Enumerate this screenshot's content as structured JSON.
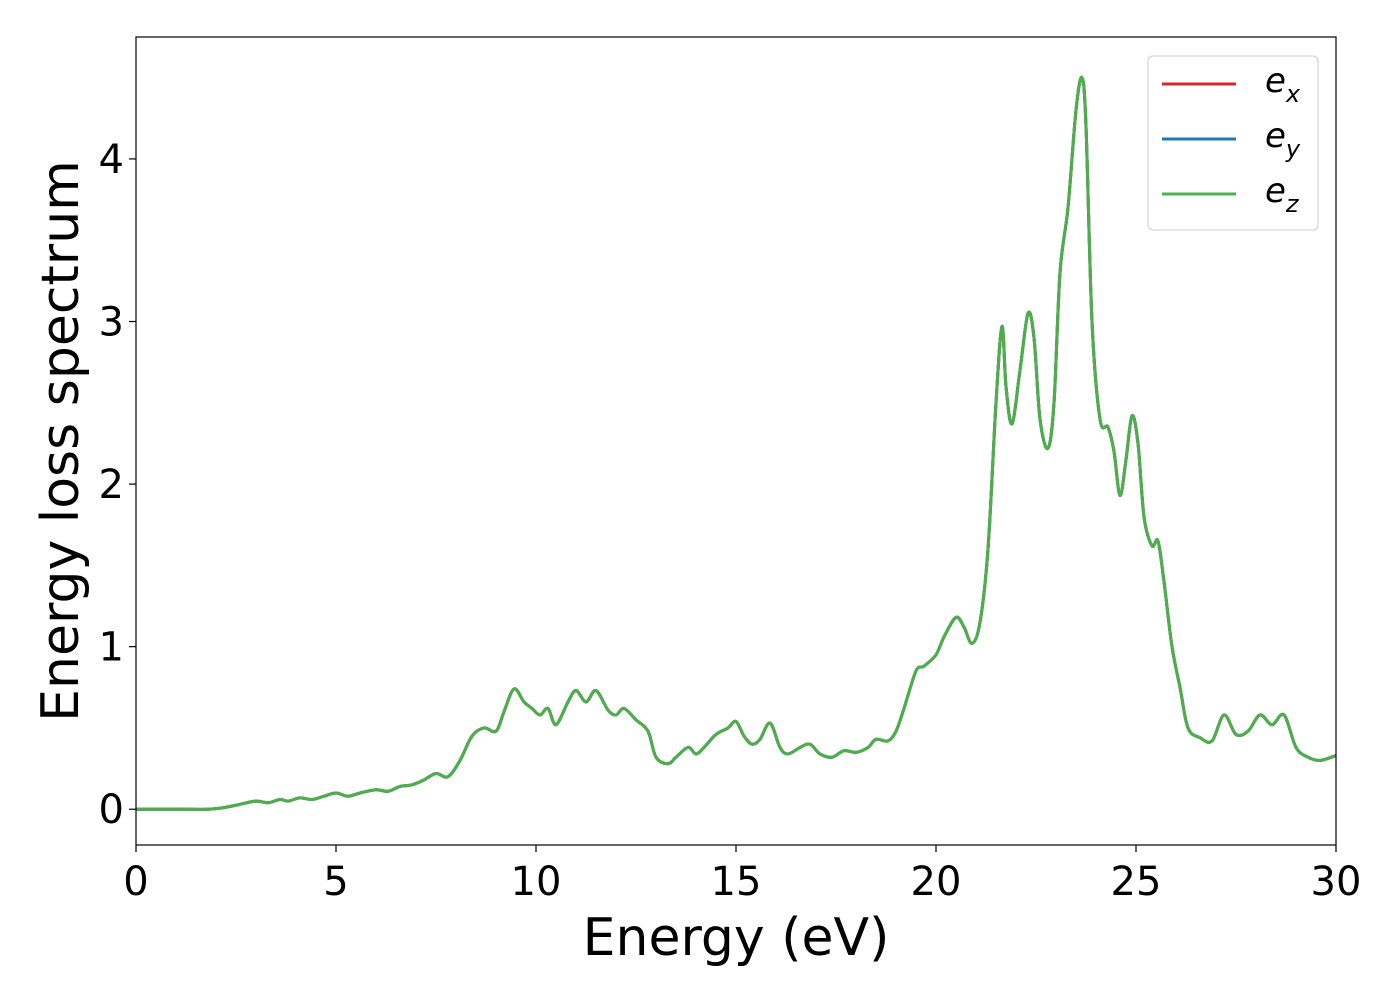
{
  "chart_data": {
    "type": "line",
    "xlabel": "Energy (eV)",
    "ylabel": "Energy loss spectrum",
    "xlim": [
      0,
      30
    ],
    "ylim": [
      -0.22,
      4.75
    ],
    "xticks": [
      0,
      5,
      10,
      15,
      20,
      25,
      30
    ],
    "yticks": [
      0,
      1,
      2,
      3,
      4
    ],
    "xtick_labels": [
      "0",
      "5",
      "10",
      "15",
      "20",
      "25",
      "30"
    ],
    "ytick_labels": [
      "0",
      "1",
      "2",
      "3",
      "4"
    ],
    "grid": false,
    "legend": {
      "placement": "top-right",
      "entries": [
        {
          "base": "e",
          "sub": "x",
          "color": "#d62728"
        },
        {
          "base": "e",
          "sub": "y",
          "color": "#1f77b4"
        },
        {
          "base": "e",
          "sub": "z",
          "color": "#4daf4a"
        }
      ]
    },
    "series": [
      {
        "color": "#d62728",
        "x": [
          0,
          1,
          1.8,
          2.2,
          2.6,
          3.0,
          3.3,
          3.6,
          3.8,
          4.1,
          4.4,
          4.7,
          5.0,
          5.3,
          5.6,
          6.0,
          6.3,
          6.6,
          6.9,
          7.2,
          7.5,
          7.8,
          8.1,
          8.4,
          8.7,
          9.0,
          9.2,
          9.45,
          9.7,
          9.9,
          10.1,
          10.3,
          10.5,
          10.8,
          11.0,
          11.25,
          11.5,
          11.8,
          12.0,
          12.2,
          12.5,
          12.8,
          13.0,
          13.3,
          13.5,
          13.8,
          14.0,
          14.2,
          14.5,
          14.8,
          15.0,
          15.2,
          15.4,
          15.6,
          15.85,
          16.1,
          16.3,
          16.6,
          16.85,
          17.1,
          17.4,
          17.7,
          18.0,
          18.3,
          18.5,
          18.8,
          19.0,
          19.2,
          19.5,
          19.7,
          20.0,
          20.2,
          20.5,
          20.7,
          20.9,
          21.1,
          21.3,
          21.5,
          21.65,
          21.75,
          21.9,
          22.1,
          22.3,
          22.45,
          22.6,
          22.8,
          22.95,
          23.1,
          23.3,
          23.5,
          23.65,
          23.75,
          23.9,
          24.1,
          24.3,
          24.45,
          24.6,
          24.75,
          24.9,
          25.05,
          25.2,
          25.4,
          25.55,
          25.7,
          25.9,
          26.1,
          26.3,
          26.6,
          26.9,
          27.2,
          27.5,
          27.8,
          28.1,
          28.4,
          28.7,
          29.0,
          29.3,
          29.6,
          30.0
        ],
        "values": [
          0.0,
          0.0,
          0.0,
          0.01,
          0.03,
          0.05,
          0.04,
          0.06,
          0.05,
          0.07,
          0.06,
          0.08,
          0.1,
          0.08,
          0.1,
          0.12,
          0.11,
          0.14,
          0.15,
          0.18,
          0.22,
          0.2,
          0.3,
          0.45,
          0.5,
          0.48,
          0.6,
          0.74,
          0.66,
          0.62,
          0.58,
          0.62,
          0.52,
          0.66,
          0.73,
          0.66,
          0.73,
          0.61,
          0.58,
          0.62,
          0.55,
          0.48,
          0.32,
          0.28,
          0.32,
          0.38,
          0.34,
          0.38,
          0.46,
          0.5,
          0.54,
          0.45,
          0.4,
          0.43,
          0.53,
          0.38,
          0.34,
          0.38,
          0.4,
          0.34,
          0.32,
          0.36,
          0.35,
          0.38,
          0.43,
          0.42,
          0.48,
          0.62,
          0.85,
          0.88,
          0.95,
          1.06,
          1.18,
          1.12,
          1.02,
          1.15,
          1.6,
          2.5,
          2.97,
          2.6,
          2.37,
          2.7,
          3.05,
          2.9,
          2.4,
          2.22,
          2.5,
          3.3,
          3.7,
          4.3,
          4.5,
          4.2,
          3.0,
          2.4,
          2.35,
          2.2,
          1.93,
          2.15,
          2.42,
          2.25,
          1.8,
          1.62,
          1.65,
          1.4,
          1.0,
          0.75,
          0.5,
          0.44,
          0.42,
          0.58,
          0.46,
          0.48,
          0.58,
          0.52,
          0.58,
          0.38,
          0.32,
          0.3,
          0.33
        ]
      },
      {
        "color": "#1f77b4",
        "x": [
          0,
          1,
          1.8,
          2.2,
          2.6,
          3.0,
          3.3,
          3.6,
          3.8,
          4.1,
          4.4,
          4.7,
          5.0,
          5.3,
          5.6,
          6.0,
          6.3,
          6.6,
          6.9,
          7.2,
          7.5,
          7.8,
          8.1,
          8.4,
          8.7,
          9.0,
          9.2,
          9.45,
          9.7,
          9.9,
          10.1,
          10.3,
          10.5,
          10.8,
          11.0,
          11.25,
          11.5,
          11.8,
          12.0,
          12.2,
          12.5,
          12.8,
          13.0,
          13.3,
          13.5,
          13.8,
          14.0,
          14.2,
          14.5,
          14.8,
          15.0,
          15.2,
          15.4,
          15.6,
          15.85,
          16.1,
          16.3,
          16.6,
          16.85,
          17.1,
          17.4,
          17.7,
          18.0,
          18.3,
          18.5,
          18.8,
          19.0,
          19.2,
          19.5,
          19.7,
          20.0,
          20.2,
          20.5,
          20.7,
          20.9,
          21.1,
          21.3,
          21.5,
          21.65,
          21.75,
          21.9,
          22.1,
          22.3,
          22.45,
          22.6,
          22.8,
          22.95,
          23.1,
          23.3,
          23.5,
          23.65,
          23.75,
          23.9,
          24.1,
          24.3,
          24.45,
          24.6,
          24.75,
          24.9,
          25.05,
          25.2,
          25.4,
          25.55,
          25.7,
          25.9,
          26.1,
          26.3,
          26.6,
          26.9,
          27.2,
          27.5,
          27.8,
          28.1,
          28.4,
          28.7,
          29.0,
          29.3,
          29.6,
          30.0
        ],
        "values": [
          0.0,
          0.0,
          0.0,
          0.01,
          0.03,
          0.05,
          0.04,
          0.06,
          0.05,
          0.07,
          0.06,
          0.08,
          0.1,
          0.08,
          0.1,
          0.12,
          0.11,
          0.14,
          0.15,
          0.18,
          0.22,
          0.2,
          0.3,
          0.45,
          0.5,
          0.48,
          0.6,
          0.74,
          0.66,
          0.62,
          0.58,
          0.62,
          0.52,
          0.66,
          0.73,
          0.66,
          0.73,
          0.61,
          0.58,
          0.62,
          0.55,
          0.48,
          0.32,
          0.28,
          0.32,
          0.38,
          0.34,
          0.38,
          0.46,
          0.5,
          0.54,
          0.45,
          0.4,
          0.43,
          0.53,
          0.38,
          0.34,
          0.38,
          0.4,
          0.34,
          0.32,
          0.36,
          0.35,
          0.38,
          0.43,
          0.42,
          0.48,
          0.62,
          0.85,
          0.88,
          0.95,
          1.06,
          1.18,
          1.12,
          1.02,
          1.15,
          1.6,
          2.5,
          2.97,
          2.6,
          2.37,
          2.7,
          3.05,
          2.9,
          2.4,
          2.22,
          2.5,
          3.3,
          3.7,
          4.3,
          4.5,
          4.2,
          3.0,
          2.4,
          2.35,
          2.2,
          1.93,
          2.15,
          2.42,
          2.25,
          1.8,
          1.62,
          1.65,
          1.4,
          1.0,
          0.75,
          0.5,
          0.44,
          0.42,
          0.58,
          0.46,
          0.48,
          0.58,
          0.52,
          0.58,
          0.38,
          0.32,
          0.3,
          0.33
        ]
      },
      {
        "color": "#4daf4a",
        "x": [
          0,
          1,
          1.8,
          2.2,
          2.6,
          3.0,
          3.3,
          3.6,
          3.8,
          4.1,
          4.4,
          4.7,
          5.0,
          5.3,
          5.6,
          6.0,
          6.3,
          6.6,
          6.9,
          7.2,
          7.5,
          7.8,
          8.1,
          8.4,
          8.7,
          9.0,
          9.2,
          9.45,
          9.7,
          9.9,
          10.1,
          10.3,
          10.5,
          10.8,
          11.0,
          11.25,
          11.5,
          11.8,
          12.0,
          12.2,
          12.5,
          12.8,
          13.0,
          13.3,
          13.5,
          13.8,
          14.0,
          14.2,
          14.5,
          14.8,
          15.0,
          15.2,
          15.4,
          15.6,
          15.85,
          16.1,
          16.3,
          16.6,
          16.85,
          17.1,
          17.4,
          17.7,
          18.0,
          18.3,
          18.5,
          18.8,
          19.0,
          19.2,
          19.5,
          19.7,
          20.0,
          20.2,
          20.5,
          20.7,
          20.9,
          21.1,
          21.3,
          21.5,
          21.65,
          21.75,
          21.9,
          22.1,
          22.3,
          22.45,
          22.6,
          22.8,
          22.95,
          23.1,
          23.3,
          23.5,
          23.65,
          23.75,
          23.9,
          24.1,
          24.3,
          24.45,
          24.6,
          24.75,
          24.9,
          25.05,
          25.2,
          25.4,
          25.55,
          25.7,
          25.9,
          26.1,
          26.3,
          26.6,
          26.9,
          27.2,
          27.5,
          27.8,
          28.1,
          28.4,
          28.7,
          29.0,
          29.3,
          29.6,
          30.0
        ],
        "values": [
          0.0,
          0.0,
          0.0,
          0.01,
          0.03,
          0.05,
          0.04,
          0.06,
          0.05,
          0.07,
          0.06,
          0.08,
          0.1,
          0.08,
          0.1,
          0.12,
          0.11,
          0.14,
          0.15,
          0.18,
          0.22,
          0.2,
          0.3,
          0.45,
          0.5,
          0.48,
          0.6,
          0.74,
          0.66,
          0.62,
          0.58,
          0.62,
          0.52,
          0.66,
          0.73,
          0.66,
          0.73,
          0.61,
          0.58,
          0.62,
          0.55,
          0.48,
          0.32,
          0.28,
          0.32,
          0.38,
          0.34,
          0.38,
          0.46,
          0.5,
          0.54,
          0.45,
          0.4,
          0.43,
          0.53,
          0.38,
          0.34,
          0.38,
          0.4,
          0.34,
          0.32,
          0.36,
          0.35,
          0.38,
          0.43,
          0.42,
          0.48,
          0.62,
          0.85,
          0.88,
          0.95,
          1.06,
          1.18,
          1.12,
          1.02,
          1.15,
          1.6,
          2.5,
          2.97,
          2.6,
          2.37,
          2.7,
          3.05,
          2.9,
          2.4,
          2.22,
          2.5,
          3.3,
          3.7,
          4.3,
          4.5,
          4.2,
          3.0,
          2.4,
          2.35,
          2.2,
          1.93,
          2.15,
          2.42,
          2.25,
          1.8,
          1.62,
          1.65,
          1.4,
          1.0,
          0.75,
          0.5,
          0.44,
          0.42,
          0.58,
          0.46,
          0.48,
          0.58,
          0.52,
          0.58,
          0.38,
          0.32,
          0.3,
          0.33
        ]
      }
    ]
  }
}
